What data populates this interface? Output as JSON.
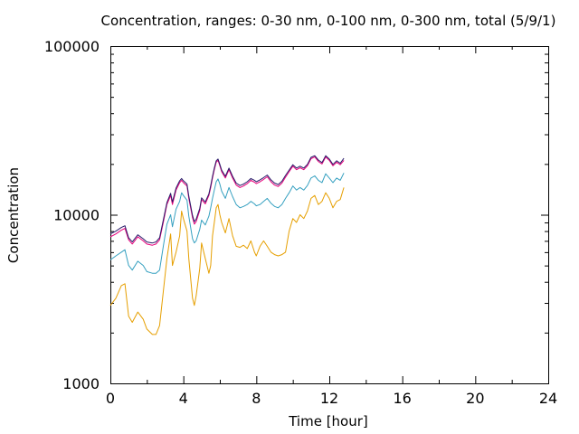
{
  "chart_data": {
    "type": "line",
    "title": "Concentration, ranges: 0-30 nm, 0-100 nm, 0-300 nm, total (5/9/1)",
    "xlabel": "Time [hour]",
    "ylabel": "Concentration",
    "x_scale": "linear",
    "y_scale": "log",
    "xlim": [
      0,
      24
    ],
    "ylim": [
      1000,
      100000
    ],
    "x_ticks": [
      0,
      4,
      8,
      12,
      16,
      20,
      24
    ],
    "x_tick_labels": [
      "0",
      "4",
      "8",
      "12",
      "16",
      "20",
      "24"
    ],
    "y_ticks": [
      1000,
      10000,
      100000
    ],
    "y_tick_labels": [
      "1000",
      "10000",
      "100000"
    ],
    "grid": false,
    "legend": false,
    "series": [
      {
        "color": "#e69f00",
        "x": [
          0,
          0.3,
          0.6,
          0.8,
          1.0,
          1.2,
          1.5,
          1.8,
          2.0,
          2.3,
          2.5,
          2.7,
          2.9,
          3.1,
          3.3,
          3.4,
          3.6,
          3.8,
          3.9,
          4.0,
          4.2,
          4.3,
          4.5,
          4.6,
          4.7,
          4.9,
          5.0,
          5.2,
          5.4,
          5.5,
          5.6,
          5.7,
          5.8,
          5.9,
          6.0,
          6.1,
          6.3,
          6.5,
          6.7,
          6.9,
          7.1,
          7.3,
          7.5,
          7.7,
          7.9,
          8.0,
          8.2,
          8.4,
          8.6,
          8.8,
          9.0,
          9.2,
          9.4,
          9.6,
          9.8,
          10.0,
          10.2,
          10.4,
          10.6,
          10.8,
          11.0,
          11.2,
          11.4,
          11.6,
          11.8,
          12.0,
          12.2,
          12.4,
          12.6,
          12.8
        ],
        "y": [
          2900,
          3200,
          3800,
          3900,
          2500,
          2300,
          2650,
          2400,
          2100,
          1950,
          1950,
          2200,
          3500,
          5500,
          7700,
          5000,
          6000,
          7500,
          10500,
          9500,
          8000,
          5500,
          3200,
          2900,
          3300,
          4800,
          6800,
          5500,
          4500,
          5000,
          7500,
          9000,
          11000,
          11500,
          10000,
          9000,
          7800,
          9500,
          7500,
          6500,
          6400,
          6600,
          6300,
          7000,
          6000,
          5700,
          6500,
          7000,
          6500,
          6000,
          5800,
          5700,
          5800,
          6000,
          8000,
          9500,
          9000,
          10000,
          9500,
          10500,
          12500,
          13000,
          11500,
          12000,
          13500,
          12500,
          11000,
          12000,
          12300,
          14500
        ]
      },
      {
        "color": "#35a0c0",
        "x": [
          0,
          0.3,
          0.6,
          0.8,
          1.0,
          1.2,
          1.5,
          1.8,
          2.0,
          2.3,
          2.5,
          2.7,
          2.9,
          3.1,
          3.3,
          3.4,
          3.6,
          3.8,
          3.9,
          4.0,
          4.2,
          4.3,
          4.5,
          4.6,
          4.7,
          4.9,
          5.0,
          5.2,
          5.4,
          5.5,
          5.6,
          5.7,
          5.8,
          5.9,
          6.0,
          6.1,
          6.3,
          6.5,
          6.7,
          6.9,
          7.1,
          7.3,
          7.5,
          7.7,
          7.9,
          8.0,
          8.2,
          8.4,
          8.6,
          8.8,
          9.0,
          9.2,
          9.4,
          9.6,
          9.8,
          10.0,
          10.2,
          10.4,
          10.6,
          10.8,
          11.0,
          11.2,
          11.4,
          11.6,
          11.8,
          12.0,
          12.2,
          12.4,
          12.6,
          12.8
        ],
        "y": [
          5400,
          5700,
          6000,
          6200,
          5000,
          4700,
          5300,
          5000,
          4600,
          4500,
          4500,
          4700,
          6500,
          8800,
          10000,
          8500,
          10800,
          12000,
          13500,
          13000,
          12200,
          9800,
          7200,
          6800,
          7000,
          8200,
          9300,
          8700,
          9800,
          11000,
          12500,
          14000,
          15700,
          16300,
          15200,
          13800,
          12500,
          14500,
          12800,
          11500,
          11000,
          11200,
          11500,
          12000,
          11600,
          11300,
          11500,
          12000,
          12500,
          11700,
          11200,
          11000,
          11500,
          12500,
          13500,
          14800,
          14000,
          14500,
          14000,
          14900,
          16500,
          17000,
          16000,
          15500,
          17500,
          16500,
          15500,
          16500,
          16000,
          17700
        ]
      },
      {
        "color": "#e6007a",
        "x": [
          0,
          0.3,
          0.6,
          0.8,
          1.0,
          1.2,
          1.5,
          1.8,
          2.0,
          2.3,
          2.5,
          2.7,
          2.9,
          3.1,
          3.3,
          3.4,
          3.6,
          3.8,
          3.9,
          4.0,
          4.2,
          4.3,
          4.5,
          4.6,
          4.7,
          4.9,
          5.0,
          5.2,
          5.4,
          5.5,
          5.6,
          5.7,
          5.8,
          5.9,
          6.0,
          6.1,
          6.3,
          6.5,
          6.7,
          6.9,
          7.1,
          7.3,
          7.5,
          7.7,
          7.9,
          8.0,
          8.2,
          8.4,
          8.6,
          8.8,
          9.0,
          9.2,
          9.4,
          9.6,
          9.8,
          10.0,
          10.2,
          10.4,
          10.6,
          10.8,
          11.0,
          11.2,
          11.4,
          11.6,
          11.8,
          12.0,
          12.2,
          12.4,
          12.6,
          12.8
        ],
        "y": [
          7400,
          7700,
          8100,
          8300,
          7100,
          6700,
          7400,
          7000,
          6700,
          6600,
          6700,
          7100,
          9000,
          11500,
          13000,
          11500,
          14000,
          15500,
          16000,
          15500,
          14800,
          12500,
          9600,
          8800,
          9100,
          10600,
          12300,
          11600,
          13000,
          14500,
          16500,
          18500,
          20500,
          21000,
          19500,
          18000,
          16500,
          18500,
          16500,
          15000,
          14500,
          14800,
          15300,
          16000,
          15600,
          15300,
          15700,
          16200,
          16800,
          15700,
          15000,
          14700,
          15400,
          16700,
          18000,
          19400,
          18500,
          19000,
          18500,
          19500,
          21500,
          22000,
          20700,
          20000,
          22000,
          21000,
          19500,
          20500,
          19800,
          21000
        ]
      },
      {
        "color": "#2a1b6a",
        "x": [
          0,
          0.3,
          0.6,
          0.8,
          1.0,
          1.2,
          1.5,
          1.8,
          2.0,
          2.3,
          2.5,
          2.7,
          2.9,
          3.1,
          3.3,
          3.4,
          3.6,
          3.8,
          3.9,
          4.0,
          4.2,
          4.3,
          4.5,
          4.6,
          4.7,
          4.9,
          5.0,
          5.2,
          5.4,
          5.5,
          5.6,
          5.7,
          5.8,
          5.9,
          6.0,
          6.1,
          6.3,
          6.5,
          6.7,
          6.9,
          7.1,
          7.3,
          7.5,
          7.7,
          7.9,
          8.0,
          8.2,
          8.4,
          8.6,
          8.8,
          9.0,
          9.2,
          9.4,
          9.6,
          9.8,
          10.0,
          10.2,
          10.4,
          10.6,
          10.8,
          11.0,
          11.2,
          11.4,
          11.6,
          11.8,
          12.0,
          12.2,
          12.4,
          12.6,
          12.8
        ],
        "y": [
          7700,
          8000,
          8400,
          8600,
          7300,
          6900,
          7600,
          7200,
          6900,
          6800,
          6900,
          7300,
          9300,
          11800,
          13400,
          11900,
          14400,
          15900,
          16400,
          15900,
          15200,
          12900,
          9900,
          9100,
          9400,
          10900,
          12600,
          11900,
          13300,
          14900,
          16900,
          18900,
          20900,
          21400,
          19900,
          18400,
          16900,
          18900,
          16900,
          15400,
          14900,
          15200,
          15700,
          16400,
          16000,
          15700,
          16100,
          16600,
          17200,
          16100,
          15400,
          15100,
          15800,
          17100,
          18400,
          19800,
          18900,
          19400,
          18900,
          19900,
          21900,
          22400,
          21100,
          20400,
          22400,
          21400,
          19900,
          20900,
          20200,
          21600
        ]
      }
    ]
  }
}
